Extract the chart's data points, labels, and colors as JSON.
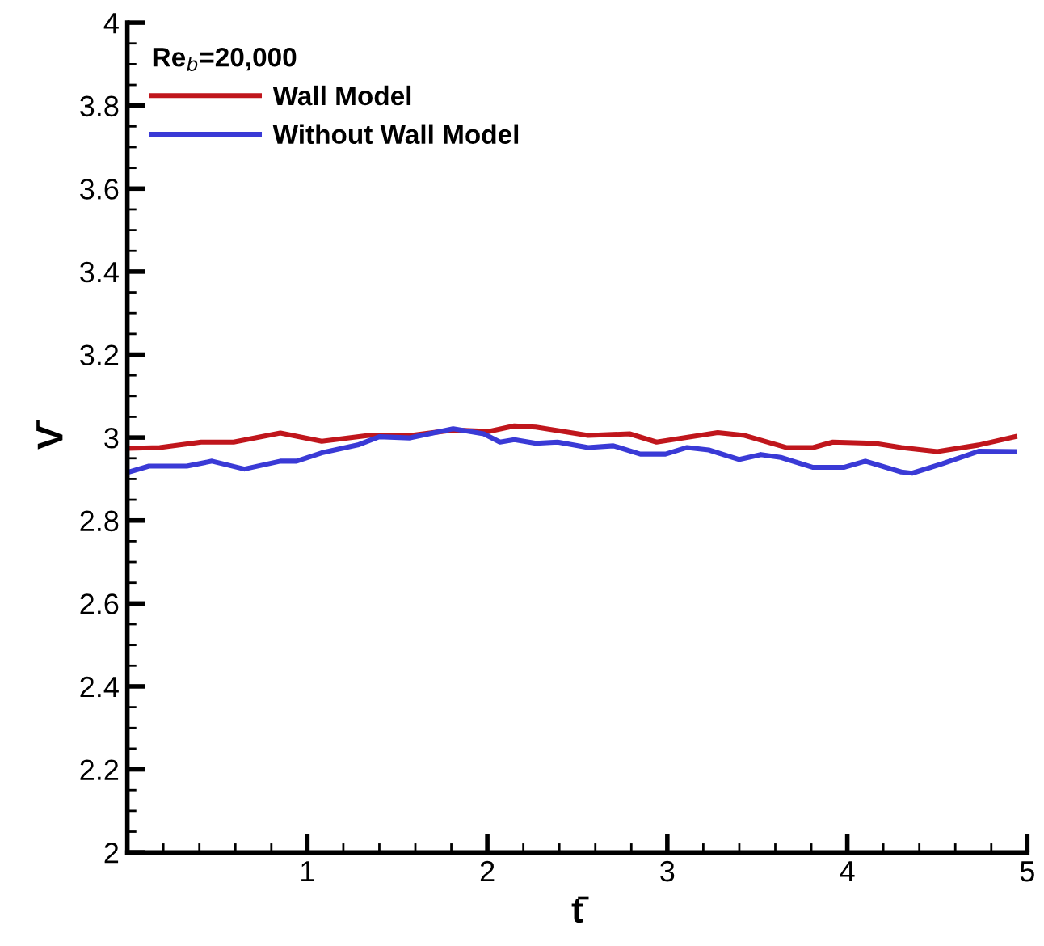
{
  "chart_data": {
    "type": "line",
    "xlabel": "t̄",
    "ylabel": "V̄",
    "legend_title": "Re$_{b}$=20,000",
    "xlim": [
      0,
      5
    ],
    "xticks": [
      1,
      2,
      3,
      4,
      5
    ],
    "ylim": [
      2,
      4
    ],
    "yticks": [
      2,
      2.2,
      2.4,
      2.6,
      2.8,
      3,
      3.2,
      3.4,
      3.6,
      3.8,
      4
    ],
    "grid": false,
    "legend": "top left",
    "marker": "none",
    "line_style": "solid",
    "series": [
      {
        "name": "Wall Model",
        "color": "#c0161c",
        "x": [
          0.01,
          0.18,
          0.41,
          0.59,
          0.85,
          1.08,
          1.34,
          1.57,
          1.81,
          2.01,
          2.15,
          2.27,
          2.56,
          2.79,
          2.94,
          3.28,
          3.43,
          3.66,
          3.81,
          3.92,
          4.15,
          4.3,
          4.5,
          4.73,
          4.93
        ],
        "values": [
          2.974,
          2.976,
          2.989,
          2.989,
          3.011,
          2.991,
          3.005,
          3.005,
          3.018,
          3.015,
          3.028,
          3.025,
          3.005,
          3.009,
          2.989,
          3.012,
          3.005,
          2.976,
          2.976,
          2.989,
          2.986,
          2.976,
          2.966,
          2.982,
          3.002
        ]
      },
      {
        "name": "Without Wall Model",
        "color": "#3a3ad6",
        "x": [
          0.01,
          0.12,
          0.33,
          0.47,
          0.65,
          0.85,
          0.94,
          1.08,
          1.28,
          1.4,
          1.57,
          1.81,
          1.98,
          2.07,
          2.15,
          2.27,
          2.39,
          2.56,
          2.7,
          2.85,
          2.99,
          3.11,
          3.23,
          3.4,
          3.52,
          3.63,
          3.81,
          3.98,
          4.1,
          4.3,
          4.36,
          4.53,
          4.73,
          4.93
        ],
        "values": [
          2.917,
          2.931,
          2.931,
          2.943,
          2.924,
          2.943,
          2.943,
          2.963,
          2.982,
          3.002,
          2.999,
          3.021,
          3.009,
          2.989,
          2.995,
          2.986,
          2.989,
          2.976,
          2.98,
          2.96,
          2.96,
          2.976,
          2.97,
          2.947,
          2.959,
          2.952,
          2.928,
          2.928,
          2.943,
          2.917,
          2.914,
          2.937,
          2.967,
          2.966
        ]
      }
    ]
  }
}
